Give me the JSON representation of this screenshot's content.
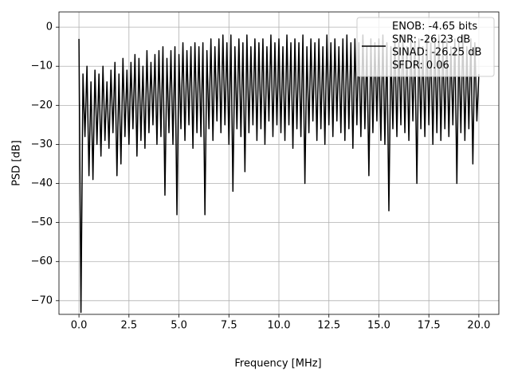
{
  "chart_data": {
    "type": "line",
    "xlabel": "Frequency [MHz]",
    "ylabel": "PSD [dB]",
    "xlim": [
      -1,
      21
    ],
    "ylim": [
      -73.5,
      3.9
    ],
    "xticks": [
      {
        "value": 0,
        "label": "0.0"
      },
      2.5,
      {
        "value": 5,
        "label": "5.0"
      },
      7.5,
      {
        "value": 10,
        "label": "10.0"
      },
      12.5,
      {
        "value": 15,
        "label": "15.0"
      },
      17.5,
      {
        "value": 20,
        "label": "20.0"
      }
    ],
    "yticks": [
      0,
      {
        "value": -10,
        "label": "−10"
      },
      {
        "value": -20,
        "label": "−20"
      },
      {
        "value": -30,
        "label": "−30"
      },
      {
        "value": -40,
        "label": "−40"
      },
      {
        "value": -50,
        "label": "−50"
      },
      {
        "value": -60,
        "label": "−60"
      },
      {
        "value": -70,
        "label": "−70"
      }
    ],
    "grid": true,
    "legend": "upper right",
    "x": [
      0.0,
      0.1,
      0.2,
      0.3,
      0.4,
      0.5,
      0.6,
      0.7,
      0.8,
      0.9,
      1.0,
      1.1,
      1.2,
      1.3,
      1.4,
      1.5,
      1.6,
      1.7,
      1.8,
      1.9,
      2.0,
      2.1,
      2.2,
      2.3,
      2.4,
      2.5,
      2.6,
      2.7,
      2.8,
      2.9,
      3.0,
      3.1,
      3.2,
      3.3,
      3.4,
      3.5,
      3.6,
      3.7,
      3.8,
      3.9,
      4.0,
      4.1,
      4.2,
      4.3,
      4.4,
      4.5,
      4.6,
      4.7,
      4.8,
      4.9,
      5.0,
      5.1,
      5.2,
      5.3,
      5.4,
      5.5,
      5.6,
      5.7,
      5.8,
      5.9,
      6.0,
      6.1,
      6.2,
      6.3,
      6.4,
      6.5,
      6.6,
      6.7,
      6.8,
      6.9,
      7.0,
      7.1,
      7.2,
      7.3,
      7.4,
      7.5,
      7.6,
      7.7,
      7.8,
      7.9,
      8.0,
      8.1,
      8.2,
      8.3,
      8.4,
      8.5,
      8.6,
      8.7,
      8.8,
      8.9,
      9.0,
      9.1,
      9.2,
      9.3,
      9.4,
      9.5,
      9.6,
      9.7,
      9.8,
      9.9,
      10.0,
      10.1,
      10.2,
      10.3,
      10.4,
      10.5,
      10.6,
      10.7,
      10.8,
      10.9,
      11.0,
      11.1,
      11.2,
      11.3,
      11.4,
      11.5,
      11.6,
      11.7,
      11.8,
      11.9,
      12.0,
      12.1,
      12.2,
      12.3,
      12.4,
      12.5,
      12.6,
      12.7,
      12.8,
      12.9,
      13.0,
      13.1,
      13.2,
      13.3,
      13.4,
      13.5,
      13.6,
      13.7,
      13.8,
      13.9,
      14.0,
      14.1,
      14.2,
      14.3,
      14.4,
      14.5,
      14.6,
      14.7,
      14.8,
      14.9,
      15.0,
      15.1,
      15.2,
      15.3,
      15.4,
      15.5,
      15.6,
      15.7,
      15.8,
      15.9,
      16.0,
      16.1,
      16.2,
      16.3,
      16.4,
      16.5,
      16.6,
      16.7,
      16.8,
      16.9,
      17.0,
      17.1,
      17.2,
      17.3,
      17.4,
      17.5,
      17.6,
      17.7,
      17.8,
      17.9,
      18.0,
      18.1,
      18.2,
      18.3,
      18.4,
      18.5,
      18.6,
      18.7,
      18.8,
      18.9,
      19.0,
      19.1,
      19.2,
      19.3,
      19.4,
      19.5,
      19.6,
      19.7,
      19.8,
      19.9,
      20.0
    ],
    "series": [
      {
        "name": "ENOB: -4.65 bits\nSNR: -26.23 dB\nSINAD: -26.25 dB\nSFDR: 0.06",
        "color": "#000000",
        "values": [
          -3,
          -73,
          -12,
          -28,
          -10,
          -38,
          -14,
          -39,
          -11,
          -30,
          -12,
          -33,
          -10,
          -29,
          -14,
          -31,
          -11,
          -27,
          -9,
          -38,
          -12,
          -35,
          -8,
          -28,
          -11,
          -30,
          -9,
          -26,
          -7,
          -33,
          -8,
          -29,
          -10,
          -31,
          -6,
          -27,
          -9,
          -25,
          -7,
          -30,
          -6,
          -28,
          -5,
          -43,
          -8,
          -27,
          -6,
          -30,
          -5,
          -48,
          -7,
          -26,
          -4,
          -29,
          -6,
          -25,
          -5,
          -31,
          -4,
          -27,
          -5,
          -28,
          -4,
          -48,
          -6,
          -26,
          -3,
          -29,
          -5,
          -24,
          -3,
          -27,
          -2,
          -25,
          -4,
          -30,
          -2,
          -42,
          -5,
          -26,
          -3,
          -28,
          -4,
          -37,
          -2,
          -27,
          -5,
          -25,
          -3,
          -29,
          -4,
          -26,
          -3,
          -30,
          -5,
          -24,
          -2,
          -28,
          -4,
          -25,
          -3,
          -27,
          -5,
          -29,
          -2,
          -25,
          -4,
          -31,
          -3,
          -26,
          -4,
          -28,
          -2,
          -40,
          -5,
          -27,
          -3,
          -24,
          -4,
          -29,
          -3,
          -26,
          -5,
          -30,
          -2,
          -25,
          -4,
          -28,
          -3,
          -24,
          -5,
          -27,
          -3,
          -29,
          -2,
          -26,
          -4,
          -31,
          -3,
          -25,
          -4,
          -28,
          -2,
          -26,
          -5,
          -38,
          -3,
          -27,
          -4,
          -24,
          -3,
          -29,
          -2,
          -30,
          -4,
          -47,
          -5,
          -26,
          -3,
          -28,
          -4,
          -25,
          -2,
          -27,
          -5,
          -29,
          -3,
          -24,
          -4,
          -40,
          -3,
          -26,
          -5,
          -28,
          -2,
          -25,
          -4,
          -30,
          -3,
          -27,
          -2,
          -29,
          -4,
          -26,
          -3,
          -28,
          -5,
          -25,
          -3,
          -40,
          -4,
          -27,
          -2,
          -29,
          -5,
          -26,
          -3,
          -35,
          -4,
          -24,
          -12
        ]
      }
    ]
  }
}
